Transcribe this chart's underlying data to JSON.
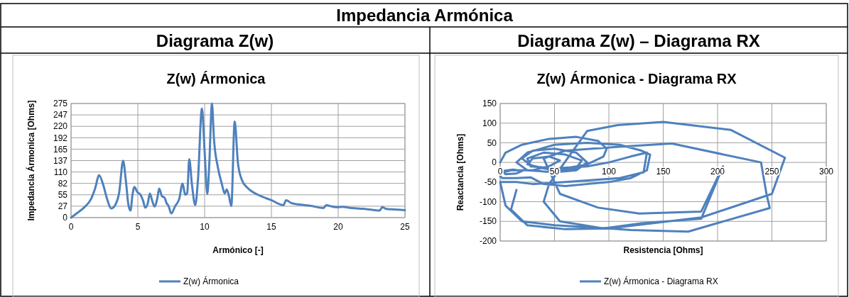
{
  "chart_data": [
    {
      "type": "line",
      "title": "Z(w) Ármonica",
      "xlabel": "Armónico [-]",
      "ylabel": "Impedancia Ármonica [Ohms]",
      "annotations": [
        "Impedancia Armónica",
        "Diagrama Z(w)"
      ],
      "xlim": [
        0,
        25
      ],
      "xticks": [
        0,
        5,
        10,
        15,
        20,
        25
      ],
      "ylim": [
        0,
        275
      ],
      "yticks": [
        0,
        {
          "value": 27.5,
          "label": "27"
        },
        55,
        {
          "value": 82.5,
          "label": "82"
        },
        110,
        {
          "value": 137.5,
          "label": "137"
        },
        165,
        {
          "value": 192.5,
          "label": "192"
        },
        220,
        {
          "value": 247.5,
          "label": "247"
        },
        275
      ],
      "grid": true,
      "legend": "bottom",
      "marker": "none",
      "line_style": "solid",
      "series": [
        {
          "name": "Z(w) Ármonica",
          "color": "#4f81bd",
          "x": [
            0,
            0.5,
            1,
            1.5,
            1.8,
            2.1,
            2.4,
            2.7,
            3,
            3.3,
            3.6,
            3.9,
            4.1,
            4.3,
            4.45,
            4.6,
            4.75,
            4.95,
            5.2,
            5.4,
            5.55,
            5.75,
            5.9,
            6.1,
            6.25,
            6.45,
            6.6,
            6.8,
            7,
            7.15,
            7.3,
            7.5,
            7.8,
            8.1,
            8.35,
            8.55,
            8.7,
            8.85,
            9.05,
            9.3,
            9.5,
            9.8,
            10,
            10.2,
            10.35,
            10.55,
            10.7,
            11,
            11.3,
            11.5,
            11.65,
            11.8,
            12,
            12.25,
            12.5,
            12.8,
            13.2,
            14,
            15,
            15.9,
            16.1,
            16.5,
            17,
            18,
            18.9,
            19.1,
            19.5,
            20,
            20.3,
            21,
            22,
            23.1,
            23.3,
            23.6,
            24,
            25
          ],
          "values": [
            0,
            12,
            25,
            45,
            70,
            102,
            80,
            45,
            22,
            30,
            60,
            137,
            90,
            30,
            17,
            55,
            74,
            62,
            55,
            40,
            24,
            35,
            58,
            38,
            27,
            45,
            70,
            52,
            48,
            35,
            28,
            10,
            28,
            45,
            82,
            55,
            60,
            141,
            80,
            30,
            90,
            263,
            160,
            57,
            130,
            275,
            190,
            120,
            80,
            58,
            68,
            55,
            28,
            232,
            130,
            90,
            72,
            55,
            42,
            30,
            42,
            35,
            32,
            28,
            23,
            30,
            27,
            25,
            26,
            23,
            21,
            17,
            25,
            21,
            20,
            18
          ]
        }
      ]
    },
    {
      "type": "line",
      "title": "Z(w) Ármonica - Diagrama RX",
      "xlabel": "Resistencia [Ohms]",
      "ylabel": "Reactancia [Ohms]",
      "annotations": [
        "Diagrama Z(w) – Diagrama RX"
      ],
      "xlim": [
        0,
        300
      ],
      "xticks": [
        0,
        50,
        100,
        150,
        200,
        250,
        300
      ],
      "ylim": [
        -200,
        150
      ],
      "yticks": [
        -200,
        -150,
        -100,
        -50,
        0,
        50,
        100,
        150
      ],
      "grid": true,
      "legend": "bottom",
      "marker": "none",
      "line_style": "solid",
      "series": [
        {
          "name": "Z(w) Ármonica - Diagrama RX",
          "color": "#4f81bd",
          "x": [
            0,
            5,
            20,
            45,
            70,
            90,
            98,
            95,
            80,
            60,
            40,
            25,
            30,
            45,
            55,
            45,
            30,
            10,
            3,
            5,
            15,
            20,
            12,
            2,
            0,
            2,
            15,
            28,
            40,
            60,
            80,
            100,
            120,
            135,
            138,
            130,
            110,
            80,
            50,
            25,
            15,
            25,
            50,
            70,
            80,
            70,
            50,
            30,
            20,
            30,
            50,
            70,
            75,
            60,
            40,
            25,
            28,
            50,
            80,
            100,
            120,
            135,
            132,
            110,
            60,
            30,
            15,
            0,
            5,
            20,
            50,
            100,
            120,
            173,
            248,
            245,
            240,
            158,
            110,
            60,
            40,
            55,
            90,
            128,
            185,
            205,
            185,
            130,
            95,
            55,
            40,
            45,
            80,
            108,
            150,
            212,
            262,
            250,
            185,
            100,
            60,
            25,
            10,
            15
          ],
          "values": [
            0,
            25,
            45,
            60,
            65,
            55,
            35,
            15,
            -5,
            -15,
            -15,
            -5,
            10,
            15,
            5,
            -10,
            -20,
            -20,
            -25,
            -30,
            -28,
            -22,
            -18,
            -22,
            -35,
            -40,
            -40,
            -38,
            -55,
            -60,
            -55,
            -50,
            -40,
            -20,
            20,
            30,
            45,
            50,
            45,
            25,
            0,
            -20,
            -25,
            -20,
            0,
            25,
            35,
            30,
            10,
            -10,
            -20,
            -15,
            5,
            20,
            25,
            10,
            -10,
            -15,
            -10,
            0,
            15,
            25,
            -25,
            -40,
            -50,
            -55,
            -50,
            -50,
            -110,
            -150,
            -160,
            -168,
            -172,
            -176,
            -116,
            -80,
            0,
            48,
            40,
            30,
            10,
            -80,
            -115,
            -130,
            -125,
            -10,
            -143,
            -155,
            -168,
            -150,
            -100,
            -55,
            80,
            95,
            103,
            83,
            12,
            -80,
            -140,
            -168,
            -170,
            -160,
            -120,
            -70
          ]
        }
      ]
    }
  ]
}
